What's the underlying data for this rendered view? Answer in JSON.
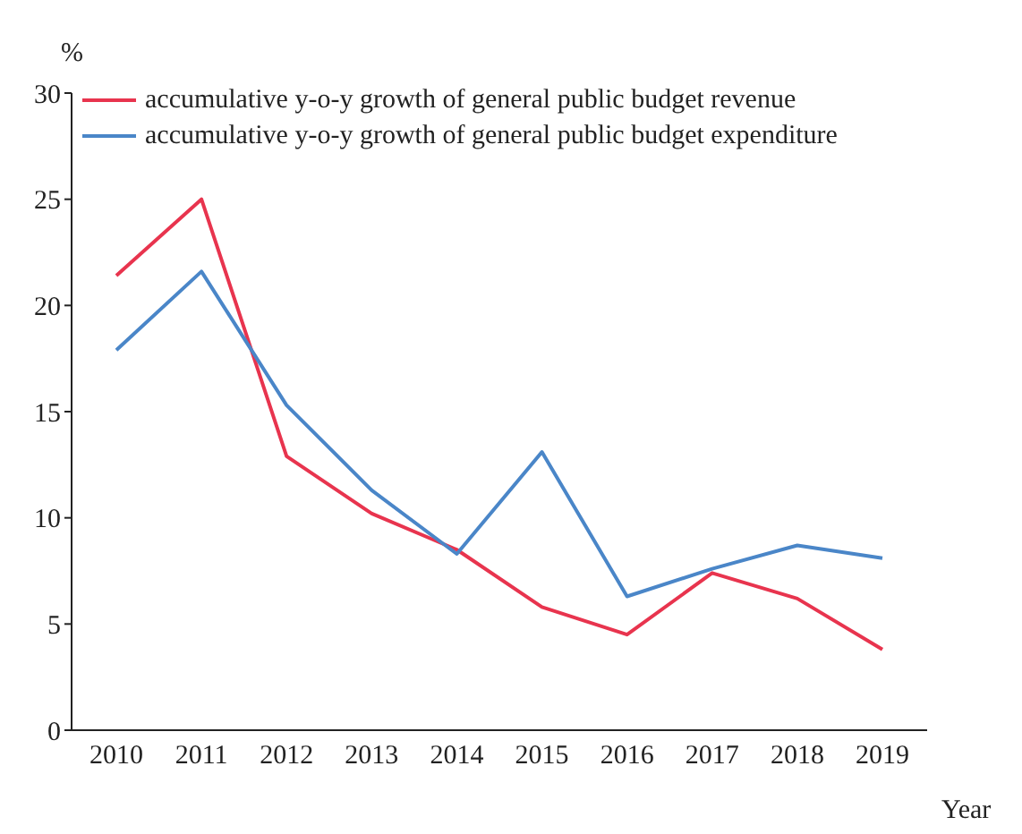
{
  "chart_data": {
    "type": "line",
    "ylabel": "%",
    "xlabel": "Year",
    "categories": [
      "2010",
      "2011",
      "2012",
      "2013",
      "2014",
      "2015",
      "2016",
      "2017",
      "2018",
      "2019"
    ],
    "series": [
      {
        "name": "accumulative y-o-y growth of general public budget revenue",
        "color": "#e8344e",
        "values": [
          21.4,
          25.0,
          12.9,
          10.2,
          8.5,
          5.8,
          4.5,
          7.4,
          6.2,
          3.8
        ]
      },
      {
        "name": "accumulative y-o-y growth of general public budget expenditure",
        "color": "#4a86c8",
        "values": [
          17.9,
          21.6,
          15.3,
          11.3,
          8.3,
          13.1,
          6.3,
          7.6,
          8.7,
          8.1
        ]
      }
    ],
    "ylim": [
      0,
      30
    ],
    "yticks": [
      0,
      5,
      10,
      15,
      20,
      25,
      30
    ],
    "grid": false,
    "legend": "top left",
    "marker": "none",
    "line_style": "solid"
  }
}
